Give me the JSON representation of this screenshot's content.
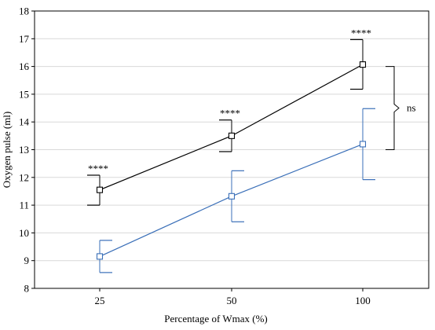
{
  "chart_data": {
    "type": "line",
    "xlabel": "Percentage of Wmax (%)",
    "ylabel": "Oxygen pulse (ml)",
    "categories": [
      "25",
      "50",
      "100"
    ],
    "ylim": [
      8,
      18
    ],
    "yticks": [
      "8",
      "9",
      "10",
      "11",
      "12",
      "13",
      "14",
      "15",
      "16",
      "17",
      "18"
    ],
    "grid": "horizontal",
    "series": [
      {
        "color": "#000000",
        "marker": "open-square",
        "error_bar_style": "upper-cap-left",
        "values": [
          11.55,
          13.5,
          16.07
        ],
        "err_low": [
          11.0,
          12.93,
          15.18
        ],
        "err_high": [
          12.08,
          14.07,
          16.97
        ]
      },
      {
        "color": "#3a6fb8",
        "marker": "open-square",
        "error_bar_style": "upper-cap-right",
        "values": [
          9.15,
          11.32,
          13.2
        ],
        "err_low": [
          8.57,
          10.4,
          11.92
        ],
        "err_high": [
          9.73,
          12.24,
          14.48
        ]
      }
    ],
    "annotations": [
      {
        "text": "****",
        "category": "25"
      },
      {
        "text": "****",
        "category": "50"
      },
      {
        "text": "****",
        "category": "100"
      },
      {
        "text": "ns",
        "type": "bracket",
        "from": 13.0,
        "to": 16.0
      }
    ]
  }
}
